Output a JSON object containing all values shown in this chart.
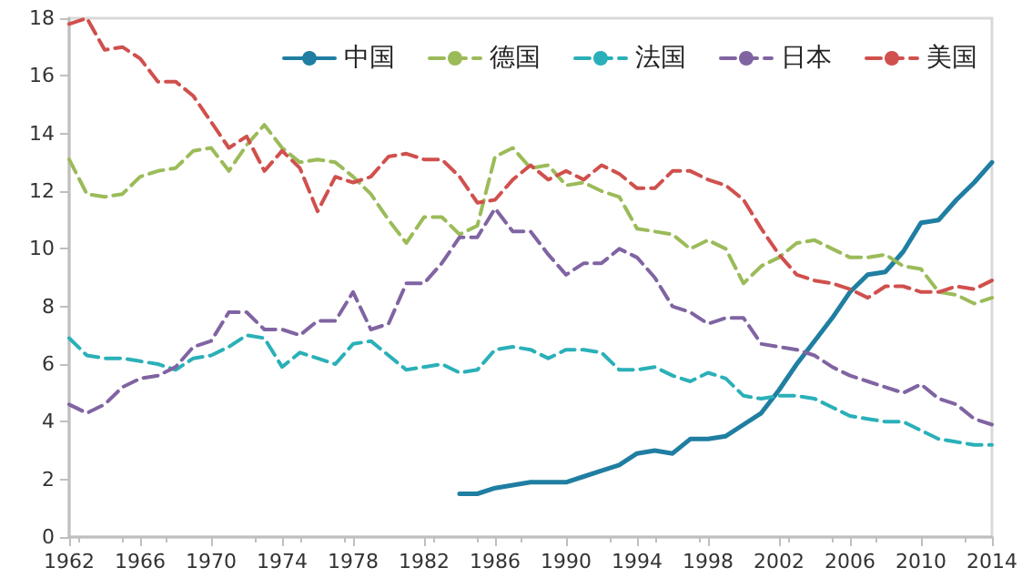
{
  "chart_data": {
    "type": "line",
    "x": [
      1962,
      1963,
      1964,
      1965,
      1966,
      1967,
      1968,
      1969,
      1970,
      1971,
      1972,
      1973,
      1974,
      1975,
      1976,
      1977,
      1978,
      1979,
      1980,
      1981,
      1982,
      1983,
      1984,
      1985,
      1986,
      1987,
      1988,
      1989,
      1990,
      1991,
      1992,
      1993,
      1994,
      1995,
      1996,
      1997,
      1998,
      1999,
      2000,
      2001,
      2002,
      2003,
      2004,
      2005,
      2006,
      2007,
      2008,
      2009,
      2010,
      2011,
      2012,
      2013,
      2014
    ],
    "series": [
      {
        "name": "中国",
        "color": "#1f7ea1",
        "line_style": "solid",
        "x": [
          1984,
          1985,
          1986,
          1987,
          1988,
          1989,
          1990,
          1991,
          1992,
          1993,
          1994,
          1995,
          1996,
          1997,
          1998,
          1999,
          2000,
          2001,
          2002,
          2003,
          2004,
          2005,
          2006,
          2007,
          2008,
          2009,
          2010,
          2011,
          2012,
          2013,
          2014
        ],
        "values": [
          1.5,
          1.5,
          1.7,
          1.8,
          1.9,
          1.9,
          1.9,
          2.1,
          2.3,
          2.5,
          2.9,
          3.0,
          2.9,
          3.4,
          3.4,
          3.5,
          3.9,
          4.3,
          5.1,
          6.0,
          6.8,
          7.6,
          8.5,
          9.1,
          9.2,
          9.9,
          10.9,
          11.0,
          11.7,
          12.3,
          13.0
        ]
      },
      {
        "name": "德国",
        "color": "#9bbb59",
        "line_style": "dashed",
        "values": [
          13.1,
          11.9,
          11.8,
          11.9,
          12.5,
          12.7,
          12.8,
          13.4,
          13.5,
          12.7,
          13.6,
          14.3,
          13.5,
          13.0,
          13.1,
          13.0,
          12.5,
          11.9,
          11.0,
          10.2,
          11.1,
          11.1,
          10.5,
          10.8,
          13.2,
          13.5,
          12.8,
          12.9,
          12.2,
          12.3,
          12.0,
          11.8,
          10.7,
          10.6,
          10.5,
          10.0,
          10.3,
          10.0,
          8.8,
          9.4,
          9.7,
          10.2,
          10.3,
          10.0,
          9.7,
          9.7,
          9.8,
          9.4,
          9.3,
          8.5,
          8.4,
          8.1,
          8.3
        ]
      },
      {
        "name": "法国",
        "color": "#2ab0b8",
        "line_style": "dashed",
        "values": [
          6.9,
          6.3,
          6.2,
          6.2,
          6.1,
          6.0,
          5.8,
          6.2,
          6.3,
          6.6,
          7.0,
          6.9,
          5.9,
          6.4,
          6.2,
          6.0,
          6.7,
          6.8,
          6.3,
          5.8,
          5.9,
          6.0,
          5.7,
          5.8,
          6.5,
          6.6,
          6.5,
          6.2,
          6.5,
          6.5,
          6.4,
          5.8,
          5.8,
          5.9,
          5.6,
          5.4,
          5.7,
          5.5,
          4.9,
          4.8,
          4.9,
          4.9,
          4.8,
          4.5,
          4.2,
          4.1,
          4.0,
          4.0,
          3.7,
          3.4,
          3.3,
          3.2,
          3.2
        ]
      },
      {
        "name": "日本",
        "color": "#8064a2",
        "line_style": "dashed",
        "values": [
          4.6,
          4.3,
          4.6,
          5.2,
          5.5,
          5.6,
          5.9,
          6.6,
          6.8,
          7.8,
          7.8,
          7.2,
          7.2,
          7.0,
          7.5,
          7.5,
          8.5,
          7.2,
          7.4,
          8.8,
          8.8,
          9.5,
          10.4,
          10.4,
          11.4,
          10.6,
          10.6,
          9.8,
          9.1,
          9.5,
          9.5,
          10.0,
          9.7,
          9.0,
          8.0,
          7.8,
          7.4,
          7.6,
          7.6,
          6.7,
          6.6,
          6.5,
          6.3,
          5.9,
          5.6,
          5.4,
          5.2,
          5.0,
          5.3,
          4.8,
          4.6,
          4.1,
          3.9
        ]
      },
      {
        "name": "美国",
        "color": "#d0504d",
        "line_style": "dashed",
        "values": [
          17.8,
          18.0,
          16.9,
          17.0,
          16.6,
          15.8,
          15.8,
          15.3,
          14.4,
          13.5,
          13.9,
          12.7,
          13.4,
          12.8,
          11.3,
          12.5,
          12.3,
          12.5,
          13.2,
          13.3,
          13.1,
          13.1,
          12.5,
          11.6,
          11.7,
          12.4,
          12.9,
          12.4,
          12.7,
          12.4,
          12.9,
          12.6,
          12.1,
          12.1,
          12.7,
          12.7,
          12.4,
          12.2,
          11.7,
          10.7,
          9.8,
          9.1,
          8.9,
          8.8,
          8.6,
          8.3,
          8.7,
          8.7,
          8.5,
          8.5,
          8.7,
          8.6,
          8.9
        ]
      }
    ],
    "xlim": [
      1962,
      2014
    ],
    "xticks": [
      1962,
      1966,
      1970,
      1974,
      1978,
      1982,
      1986,
      1990,
      1994,
      1998,
      2002,
      2006,
      2010,
      2014
    ],
    "ylim": [
      0,
      18
    ],
    "yticks": [
      0,
      2,
      4,
      6,
      8,
      10,
      12,
      14,
      16,
      18
    ],
    "grid": false,
    "legend": "top"
  }
}
